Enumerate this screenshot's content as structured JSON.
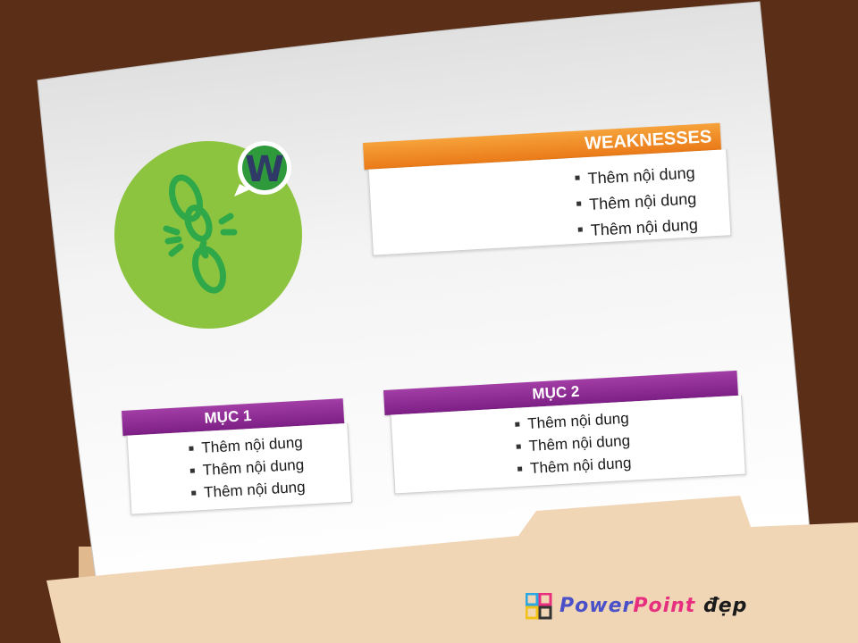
{
  "weaknesses": {
    "title": "WEAKNESSES",
    "items": [
      "Thêm nội dung",
      "Thêm nội dung",
      "Thêm nội dung"
    ],
    "header_color": "#ea7a18"
  },
  "badge": {
    "letter": "W",
    "circle_color": "#8dc43f",
    "icon": "broken-chain-icon"
  },
  "muc1": {
    "title": "MỤC 1",
    "items": [
      "Thêm nội dung",
      "Thêm nội dung",
      "Thêm nội dung"
    ],
    "header_color": "#7d1f86"
  },
  "muc2": {
    "title": "MỤC 2",
    "items": [
      "Thêm nội dung",
      "Thêm nội dung",
      "Thêm nội dung"
    ],
    "header_color": "#7d1f86"
  },
  "logo": {
    "part1": "Power",
    "part2": "Point",
    "part3": "đẹp"
  }
}
